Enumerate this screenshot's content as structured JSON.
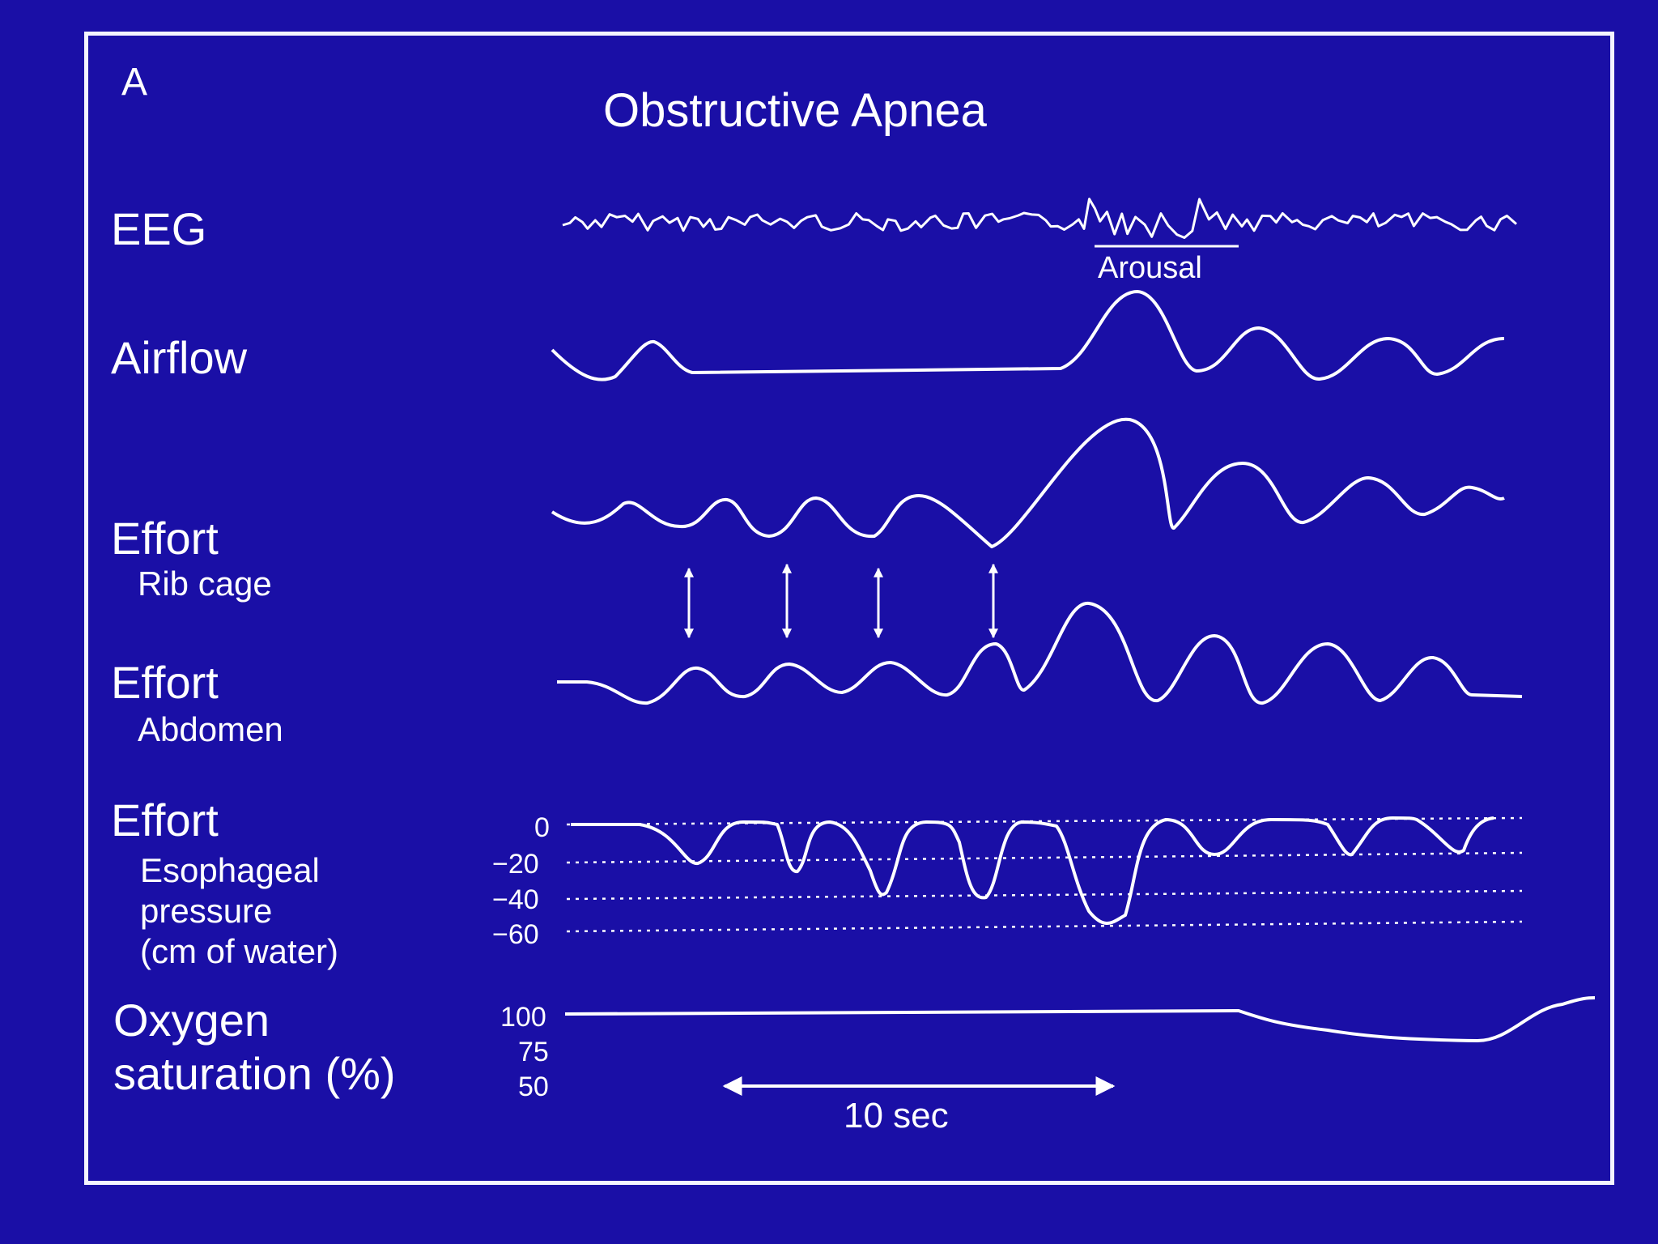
{
  "panel_letter": "A",
  "title": "Obstructive Apnea",
  "colors": {
    "background": "#1a0fa6",
    "ink": "#ffffff"
  },
  "channels": {
    "eeg": {
      "label": "EEG",
      "annotation": "Arousal"
    },
    "airflow": {
      "label": "Airflow"
    },
    "rib_cage": {
      "label": "Effort",
      "sub": "Rib cage"
    },
    "abdomen": {
      "label": "Effort",
      "sub": "Abdomen"
    },
    "esophageal": {
      "label": "Effort",
      "sub_lines": [
        "Esophageal",
        "pressure",
        "(cm of water)"
      ],
      "ticks": [
        "0",
        "−20",
        "−40",
        "−60"
      ]
    },
    "oxygen": {
      "label_lines": [
        "Oxygen",
        "saturation (%)"
      ],
      "ticks": [
        "100",
        "75",
        "50"
      ]
    }
  },
  "scale_bar": {
    "label": "10 sec"
  }
}
